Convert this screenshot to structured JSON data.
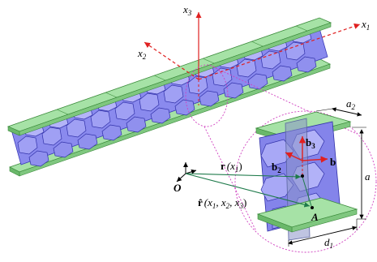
{
  "figure": {
    "axes": {
      "x1": {
        "base": "x",
        "sub": "1"
      },
      "x2": {
        "base": "x",
        "sub": "2"
      },
      "x3": {
        "base": "x",
        "sub": "3"
      }
    },
    "labels": {
      "a2": {
        "base": "a",
        "sub": "2"
      },
      "a_right": {
        "base": "a",
        "sub": ""
      },
      "d1": {
        "base": "d",
        "sub": "1"
      },
      "b1": "b",
      "b2": {
        "base": "b",
        "sub": "2"
      },
      "b3": {
        "base": "b",
        "sub": "3"
      },
      "r_vec": "r",
      "r_args": "(x",
      "r_sub": "1",
      "r_close": ")",
      "rhat": "r̂",
      "rhat_args": "(x",
      "rhat_sub1": "1",
      "rhat_mid1": ", x",
      "rhat_sub2": "2",
      "rhat_mid2": ", x",
      "rhat_sub3": "3",
      "rhat_close": ")",
      "origin": "O",
      "point": "A"
    },
    "colors": {
      "plate": "#a6e2a6",
      "plate_edge": "#3a8a3a",
      "core": "#7b7bea",
      "core_dark": "#4040c0",
      "axis_red": "#e02020",
      "magenta": "#d040c0",
      "green_line": "#1e7a4a",
      "section": "#8a94c8"
    }
  }
}
